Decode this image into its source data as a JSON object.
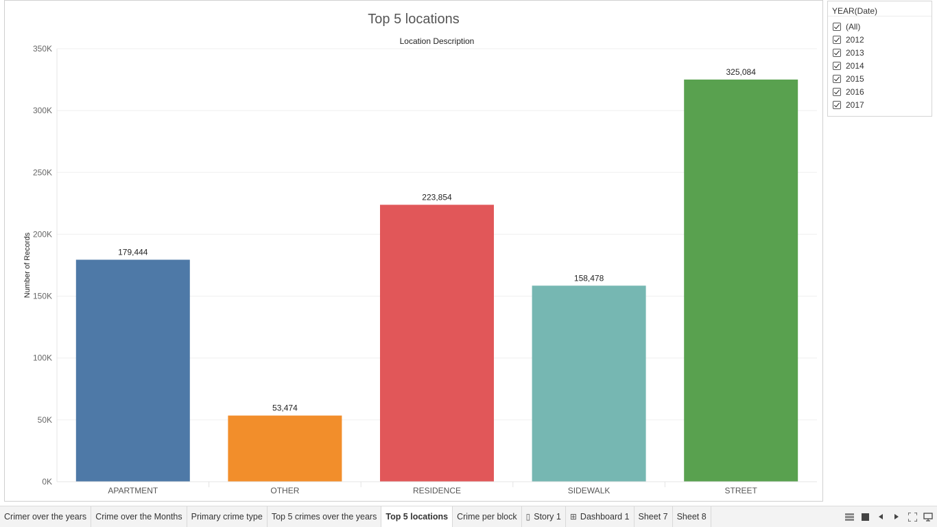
{
  "chart_data": {
    "type": "bar",
    "title": "Top 5 locations",
    "column_header": "Location Description",
    "ylabel": "Number of Records",
    "ylim": [
      0,
      350000
    ],
    "yticks": [
      0,
      50000,
      100000,
      150000,
      200000,
      250000,
      300000,
      350000
    ],
    "ytick_labels": [
      "0K",
      "50K",
      "100K",
      "150K",
      "200K",
      "250K",
      "300K",
      "350K"
    ],
    "categories": [
      "APARTMENT",
      "OTHER",
      "RESIDENCE",
      "SIDEWALK",
      "STREET"
    ],
    "values": [
      179444,
      53474,
      223854,
      158478,
      325084
    ],
    "value_labels": [
      "179,444",
      "53,474",
      "223,854",
      "158,478",
      "325,084"
    ],
    "colors": [
      "#4e79a7",
      "#f28e2b",
      "#e15759",
      "#76b7b2",
      "#59a14f"
    ],
    "grid": true,
    "legend": "none"
  },
  "filter": {
    "title": "YEAR(Date)",
    "items": [
      {
        "label": "(All)",
        "checked": true
      },
      {
        "label": "2012",
        "checked": true
      },
      {
        "label": "2013",
        "checked": true
      },
      {
        "label": "2014",
        "checked": true
      },
      {
        "label": "2015",
        "checked": true
      },
      {
        "label": "2016",
        "checked": true
      },
      {
        "label": "2017",
        "checked": true
      }
    ]
  },
  "tabs": [
    {
      "label": "Crimer over the years",
      "icon": ""
    },
    {
      "label": "Crime over the Months",
      "icon": ""
    },
    {
      "label": "Primary crime type",
      "icon": ""
    },
    {
      "label": "Top 5 crimes over the years",
      "icon": ""
    },
    {
      "label": "Top 5 locations",
      "icon": "",
      "active": true
    },
    {
      "label": "Crime per block",
      "icon": ""
    },
    {
      "label": "Story 1",
      "icon": "story-icon"
    },
    {
      "label": "Dashboard 1",
      "icon": "dashboard-icon"
    },
    {
      "label": "Sheet 7",
      "icon": ""
    },
    {
      "label": "Sheet 8",
      "icon": ""
    }
  ],
  "tab_controls": [
    "grid-view-icon",
    "filmstrip-icon",
    "previous-icon",
    "next-icon",
    "fit-screen-icon",
    "presentation-icon"
  ]
}
